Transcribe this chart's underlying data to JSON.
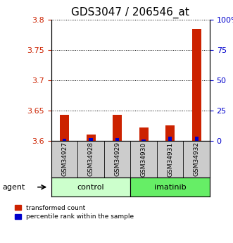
{
  "title": "GDS3047 / 206546_at",
  "samples": [
    "GSM34927",
    "GSM34928",
    "GSM34929",
    "GSM34930",
    "GSM34931",
    "GSM34932"
  ],
  "red_values": [
    3.643,
    3.611,
    3.643,
    3.622,
    3.626,
    3.785
  ],
  "blue_values": [
    2.0,
    2.5,
    2.5,
    1.5,
    3.5,
    3.5
  ],
  "ylim_left": [
    3.6,
    3.8
  ],
  "ylim_right": [
    0,
    100
  ],
  "yticks_left": [
    3.6,
    3.65,
    3.7,
    3.75,
    3.8
  ],
  "yticks_right": [
    0,
    25,
    50,
    75,
    100
  ],
  "ytick_labels_left": [
    "3.6",
    "3.65",
    "3.7",
    "3.75",
    "3.8"
  ],
  "ytick_labels_right": [
    "0",
    "25",
    "50",
    "75",
    "100%"
  ],
  "bar_width": 0.35,
  "red_color": "#cc2200",
  "blue_color": "#0000cc",
  "control_bg": "#ccffcc",
  "imatinib_bg": "#66ee66",
  "sample_bg": "#cccccc",
  "agent_label": "agent",
  "legend_red": "transformed count",
  "legend_blue": "percentile rank within the sample",
  "title_fontsize": 11,
  "tick_fontsize": 8,
  "label_fontsize": 8
}
